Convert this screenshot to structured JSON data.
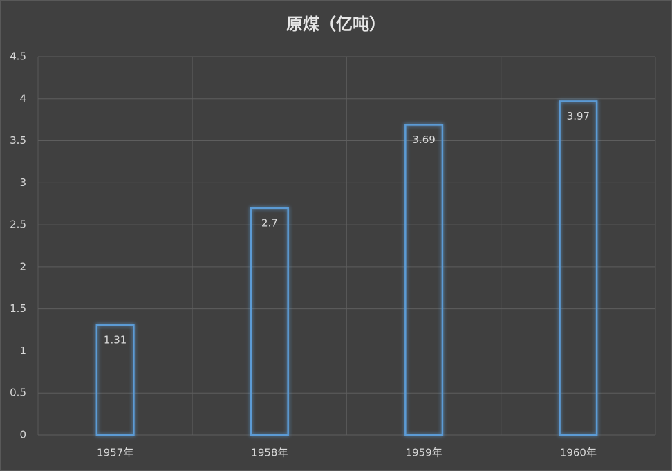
{
  "chart_data": {
    "type": "bar",
    "title": "原煤（亿吨）",
    "categories": [
      "1957年",
      "1958年",
      "1959年",
      "1960年"
    ],
    "values": [
      1.31,
      2.7,
      3.69,
      3.97
    ],
    "color": "#5b9bd5",
    "ylim": [
      0,
      4.5
    ],
    "yticks": [
      0,
      0.5,
      1,
      1.5,
      2,
      2.5,
      3,
      3.5,
      4,
      4.5
    ],
    "grid": true
  }
}
